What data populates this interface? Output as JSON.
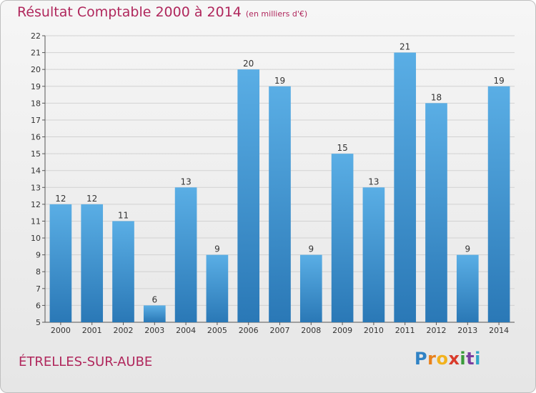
{
  "title": "Résultat Comptable 2000 à 2014",
  "subtitle": "(en milliers d'€)",
  "commune": "ÉTRELLES-SUR-AUBE",
  "logo": {
    "letters": [
      "P",
      "r",
      "o",
      "x",
      "i",
      "t",
      "i"
    ],
    "colors": [
      "#2f82c5",
      "#e8811c",
      "#f2b21e",
      "#d93b2b",
      "#3a9a3a",
      "#7a3fa0",
      "#2fa6c8"
    ]
  },
  "colors": {
    "bar_top": "#5aaee5",
    "bar_bottom": "#2a78b6",
    "axis": "#555555",
    "grid": "#d2d2d2",
    "title": "#b0275c"
  },
  "chart_data": {
    "type": "bar",
    "title": "Résultat Comptable 2000 à 2014",
    "ylabel": "en milliers d'€",
    "xlabel": "",
    "categories": [
      "2000",
      "2001",
      "2002",
      "2003",
      "2004",
      "2005",
      "2006",
      "2007",
      "2008",
      "2009",
      "2010",
      "2011",
      "2012",
      "2013",
      "2014"
    ],
    "values": [
      12,
      12,
      11,
      6,
      13,
      9,
      20,
      19,
      9,
      15,
      13,
      21,
      18,
      9,
      19
    ],
    "ylim": [
      5,
      22
    ],
    "yticks": [
      5,
      6,
      7,
      8,
      9,
      10,
      11,
      12,
      13,
      14,
      15,
      16,
      17,
      18,
      19,
      20,
      21,
      22
    ],
    "grid": true
  }
}
